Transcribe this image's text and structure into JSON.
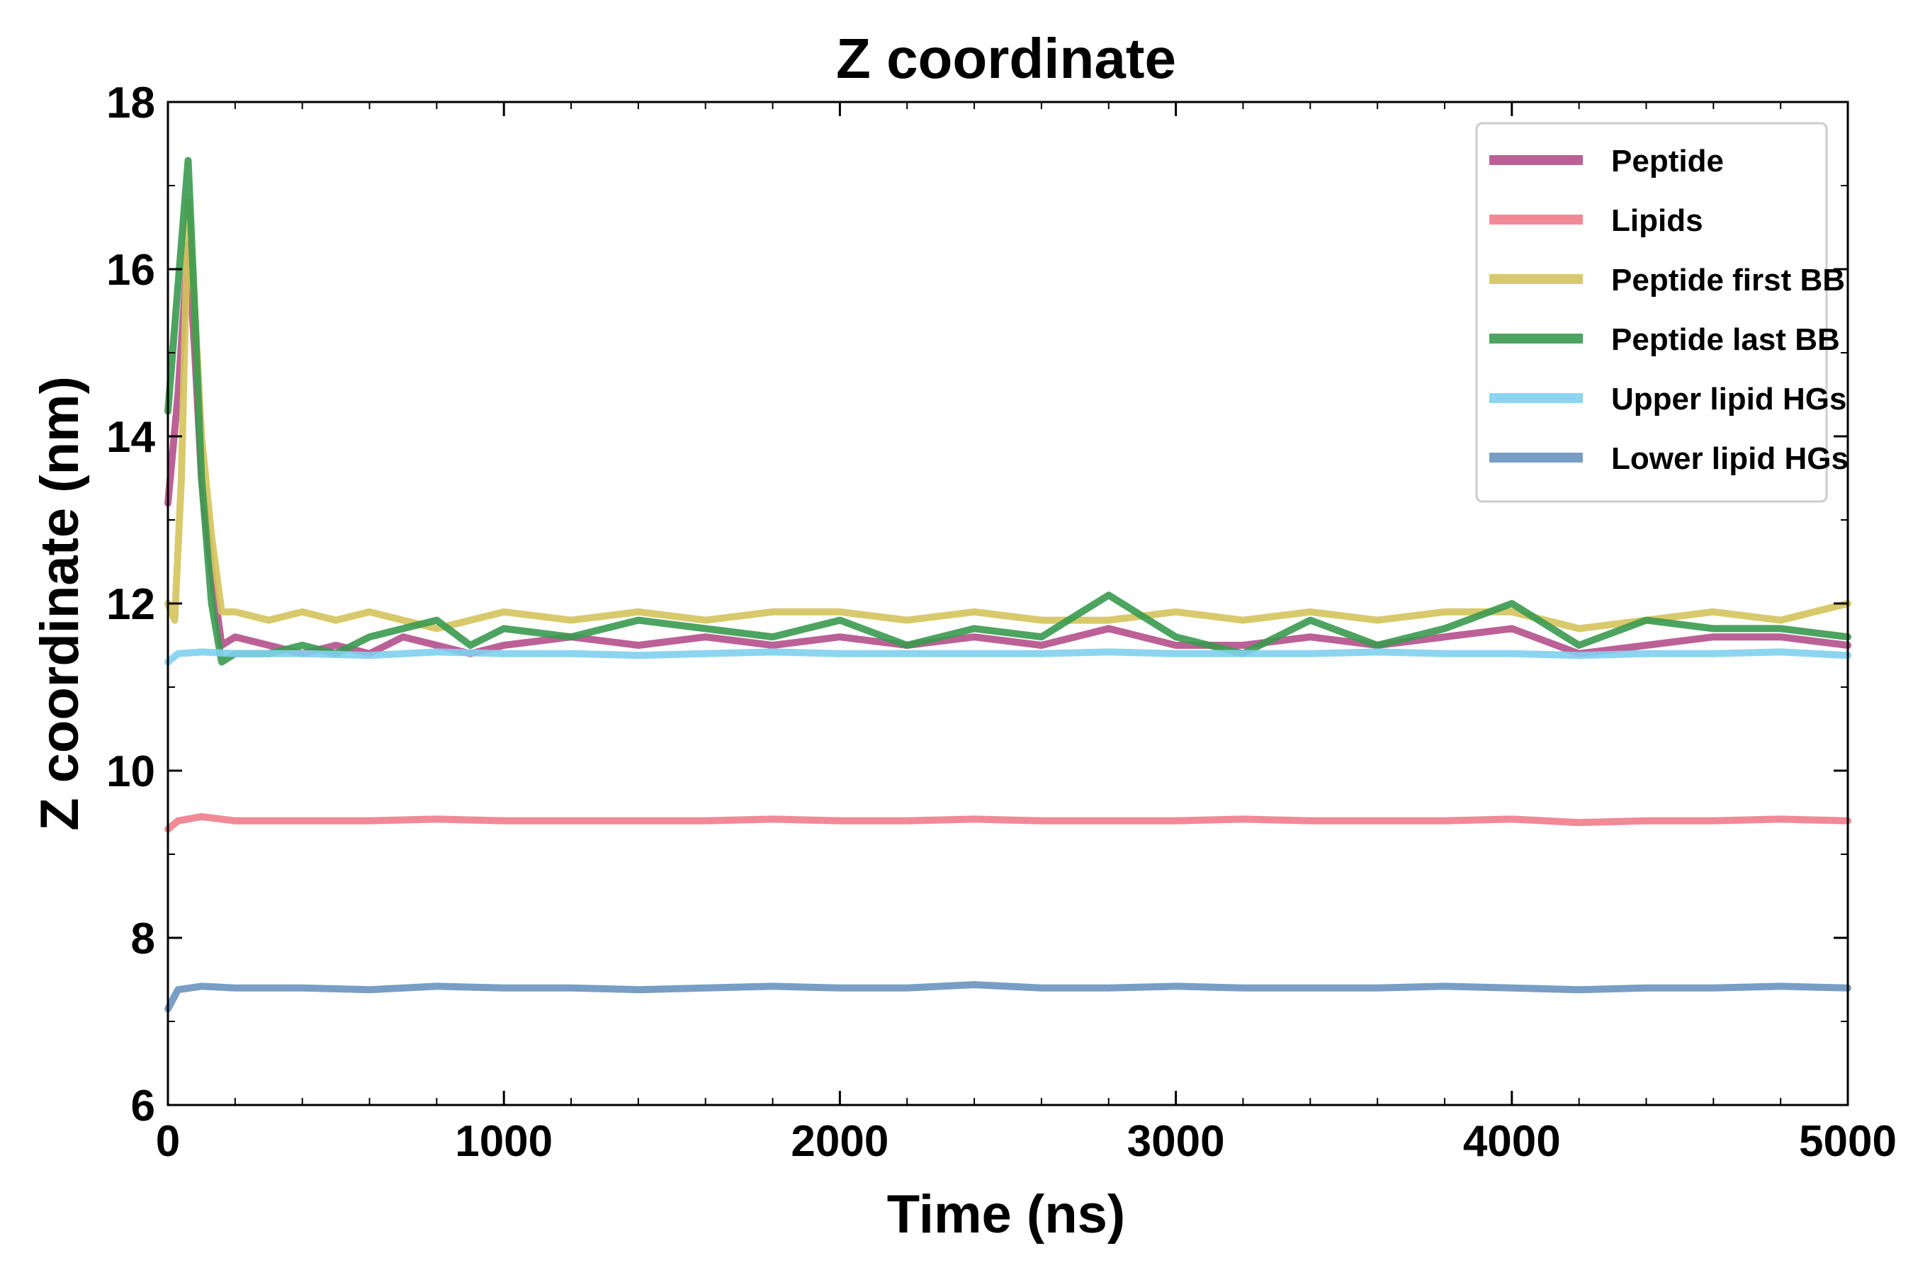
{
  "chart_data": {
    "type": "line",
    "title": "Z coordinate",
    "xlabel": "Time (ns)",
    "ylabel": "Z coordinate (nm)",
    "xlim": [
      0,
      5000
    ],
    "ylim": [
      6,
      18
    ],
    "xticks": [
      "0",
      "1000",
      "2000",
      "3000",
      "4000",
      "5000"
    ],
    "yticks": [
      "6",
      "8",
      "10",
      "12",
      "14",
      "16",
      "18"
    ],
    "grid": false,
    "legend_position": "top-right",
    "series": [
      {
        "name": "Peptide",
        "color": "#b5508c",
        "x": [
          0,
          30,
          60,
          80,
          100,
          130,
          160,
          200,
          300,
          400,
          500,
          600,
          700,
          800,
          900,
          1000,
          1200,
          1400,
          1600,
          1800,
          2000,
          2200,
          2400,
          2600,
          2800,
          3000,
          3200,
          3400,
          3600,
          3800,
          4000,
          4200,
          4400,
          4600,
          4800,
          5000
        ],
        "values": [
          13.2,
          14.5,
          16.3,
          15.0,
          13.5,
          12.4,
          11.5,
          11.6,
          11.5,
          11.4,
          11.5,
          11.4,
          11.6,
          11.5,
          11.4,
          11.5,
          11.6,
          11.5,
          11.6,
          11.5,
          11.6,
          11.5,
          11.6,
          11.5,
          11.7,
          11.5,
          11.5,
          11.6,
          11.5,
          11.6,
          11.7,
          11.4,
          11.5,
          11.6,
          11.6,
          11.5
        ]
      },
      {
        "name": "Lipids",
        "color": "#f07c8c",
        "x": [
          0,
          30,
          100,
          200,
          400,
          600,
          800,
          1000,
          1200,
          1400,
          1600,
          1800,
          2000,
          2200,
          2400,
          2600,
          2800,
          3000,
          3200,
          3400,
          3600,
          3800,
          4000,
          4200,
          4400,
          4600,
          4800,
          5000
        ],
        "values": [
          9.3,
          9.4,
          9.45,
          9.4,
          9.4,
          9.4,
          9.42,
          9.4,
          9.4,
          9.4,
          9.4,
          9.42,
          9.4,
          9.4,
          9.42,
          9.4,
          9.4,
          9.4,
          9.42,
          9.4,
          9.4,
          9.4,
          9.42,
          9.38,
          9.4,
          9.4,
          9.42,
          9.4
        ]
      },
      {
        "name": "Peptide first BB",
        "color": "#d4c45c",
        "x": [
          0,
          20,
          40,
          60,
          80,
          100,
          130,
          160,
          200,
          300,
          400,
          500,
          600,
          700,
          800,
          900,
          1000,
          1200,
          1400,
          1600,
          1800,
          2000,
          2200,
          2400,
          2600,
          2800,
          3000,
          3200,
          3400,
          3600,
          3800,
          4000,
          4200,
          4400,
          4600,
          4800,
          5000
        ],
        "values": [
          12.0,
          11.8,
          13.5,
          16.8,
          15.5,
          14.0,
          12.8,
          11.9,
          11.9,
          11.8,
          11.9,
          11.8,
          11.9,
          11.8,
          11.7,
          11.8,
          11.9,
          11.8,
          11.9,
          11.8,
          11.9,
          11.9,
          11.8,
          11.9,
          11.8,
          11.8,
          11.9,
          11.8,
          11.9,
          11.8,
          11.9,
          11.9,
          11.7,
          11.8,
          11.9,
          11.8,
          12.0
        ]
      },
      {
        "name": "Peptide last BB",
        "color": "#3a9a4f",
        "x": [
          0,
          30,
          60,
          80,
          100,
          130,
          160,
          200,
          300,
          400,
          500,
          600,
          700,
          800,
          900,
          1000,
          1200,
          1400,
          1600,
          1800,
          2000,
          2200,
          2400,
          2600,
          2800,
          3000,
          3200,
          3400,
          3600,
          3800,
          4000,
          4200,
          4400,
          4600,
          4800,
          5000
        ],
        "values": [
          14.3,
          15.8,
          17.3,
          15.5,
          13.5,
          12.0,
          11.3,
          11.4,
          11.4,
          11.5,
          11.4,
          11.6,
          11.7,
          11.8,
          11.5,
          11.7,
          11.6,
          11.8,
          11.7,
          11.6,
          11.8,
          11.5,
          11.7,
          11.6,
          12.1,
          11.6,
          11.4,
          11.8,
          11.5,
          11.7,
          12.0,
          11.5,
          11.8,
          11.7,
          11.7,
          11.6
        ]
      },
      {
        "name": "Upper lipid HGs",
        "color": "#7fd0ef",
        "x": [
          0,
          30,
          100,
          200,
          400,
          600,
          800,
          1000,
          1200,
          1400,
          1600,
          1800,
          2000,
          2200,
          2400,
          2600,
          2800,
          3000,
          3200,
          3400,
          3600,
          3800,
          4000,
          4200,
          4400,
          4600,
          4800,
          5000
        ],
        "values": [
          11.3,
          11.4,
          11.42,
          11.4,
          11.4,
          11.38,
          11.42,
          11.4,
          11.4,
          11.38,
          11.4,
          11.42,
          11.4,
          11.4,
          11.4,
          11.4,
          11.42,
          11.4,
          11.4,
          11.4,
          11.42,
          11.4,
          11.4,
          11.38,
          11.4,
          11.4,
          11.42,
          11.38
        ]
      },
      {
        "name": "Lower lipid HGs",
        "color": "#6a93c0",
        "x": [
          0,
          30,
          100,
          200,
          400,
          600,
          800,
          1000,
          1200,
          1400,
          1600,
          1800,
          2000,
          2200,
          2400,
          2600,
          2800,
          3000,
          3200,
          3400,
          3600,
          3800,
          4000,
          4200,
          4400,
          4600,
          4800,
          5000
        ],
        "values": [
          7.15,
          7.38,
          7.42,
          7.4,
          7.4,
          7.38,
          7.42,
          7.4,
          7.4,
          7.38,
          7.4,
          7.42,
          7.4,
          7.4,
          7.44,
          7.4,
          7.4,
          7.42,
          7.4,
          7.4,
          7.4,
          7.42,
          7.4,
          7.38,
          7.4,
          7.4,
          7.42,
          7.4
        ]
      }
    ]
  }
}
